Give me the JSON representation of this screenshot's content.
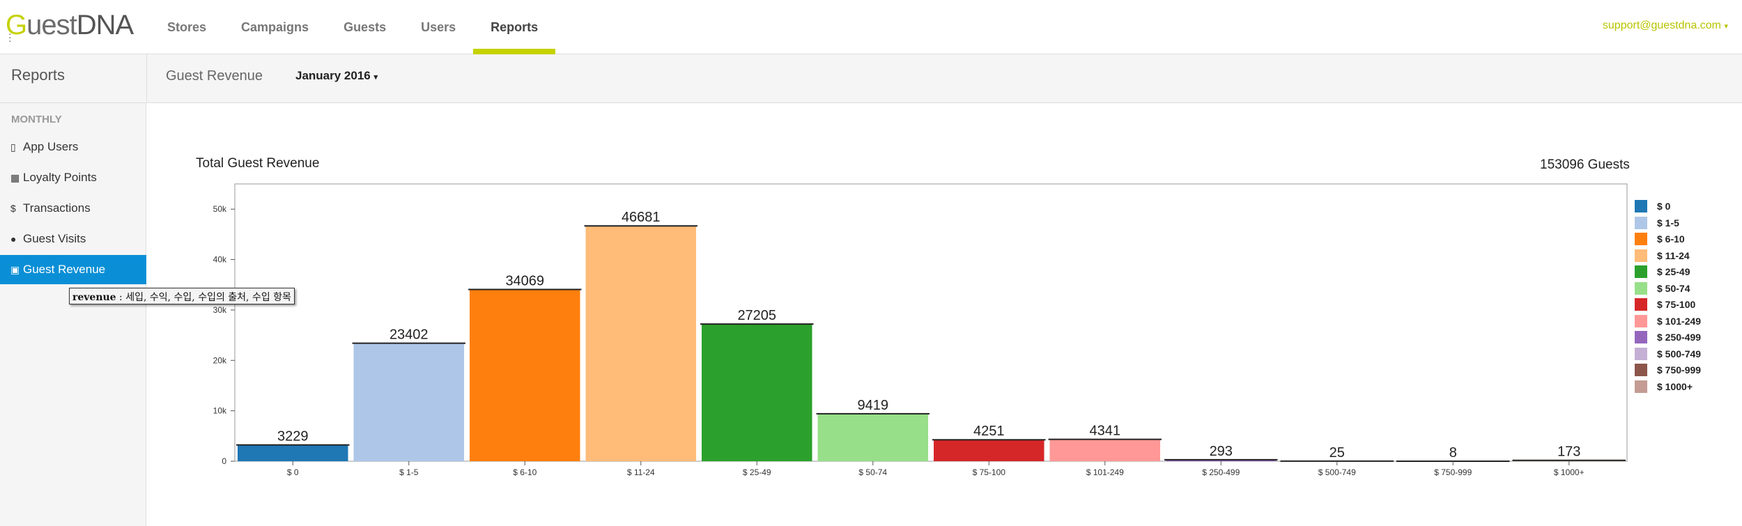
{
  "header": {
    "logo_g": "G",
    "logo_rest": "uest",
    "logo_dna": "DNA",
    "nav": [
      {
        "label": "Stores"
      },
      {
        "label": "Campaigns"
      },
      {
        "label": "Guests"
      },
      {
        "label": "Users"
      },
      {
        "label": "Reports"
      }
    ],
    "active_nav": 4,
    "user_email": "support@guestdna.com",
    "user_caret": "▾",
    "accent_color": "#c5d200"
  },
  "subheader": {
    "title": "Reports",
    "report_name": "Guest Revenue",
    "month": "January 2016",
    "month_caret": "▾"
  },
  "sidebar": {
    "heading": "MONTHLY",
    "items": [
      {
        "label": "App Users",
        "icon": "mobile-icon",
        "glyph": "▯"
      },
      {
        "label": "Loyalty Points",
        "icon": "qrcode-icon",
        "glyph": "▦"
      },
      {
        "label": "Transactions",
        "icon": "dollar-icon",
        "glyph": "$"
      },
      {
        "label": "Guest Visits",
        "icon": "user-icon",
        "glyph": "●"
      },
      {
        "label": "Guest Revenue",
        "icon": "money-icon",
        "glyph": "▣"
      }
    ],
    "active_index": 4,
    "active_color": "#0a8fd6"
  },
  "tooltip": {
    "term": "revenue",
    "separator": " : ",
    "definition": "세입, 수익, 수입, 수입의 출처, 수입 항목"
  },
  "chart_data": {
    "type": "bar",
    "title": "Total Guest Revenue",
    "summary": "153096 Guests",
    "categories": [
      "$ 0",
      "$ 1-5",
      "$ 6-10",
      "$ 11-24",
      "$ 25-49",
      "$ 50-74",
      "$ 75-100",
      "$ 101-249",
      "$ 250-499",
      "$ 500-749",
      "$ 750-999",
      "$ 1000+"
    ],
    "values": [
      3229,
      23402,
      34069,
      46681,
      27205,
      9419,
      4251,
      4341,
      293,
      25,
      8,
      173
    ],
    "colors": [
      "#1f77b4",
      "#aec7e8",
      "#ff7f0e",
      "#ffbb78",
      "#2ca02c",
      "#98df8a",
      "#d62728",
      "#ff9896",
      "#9467bd",
      "#c5b0d5",
      "#8c564b",
      "#c49c94"
    ],
    "yticks": [
      0,
      10000,
      20000,
      30000,
      40000,
      50000
    ],
    "ytick_labels": [
      "0",
      "10k",
      "20k",
      "30k",
      "40k",
      "50k"
    ],
    "ylim": [
      0,
      55000
    ],
    "xlabel": "",
    "ylabel": "",
    "legend_position": "right",
    "legend": [
      "$ 0",
      "$ 1-5",
      "$ 6-10",
      "$ 11-24",
      "$ 25-49",
      "$ 50-74",
      "$ 75-100",
      "$ 101-249",
      "$ 250-499",
      "$ 500-749",
      "$ 750-999",
      "$ 1000+"
    ],
    "grid": false
  }
}
